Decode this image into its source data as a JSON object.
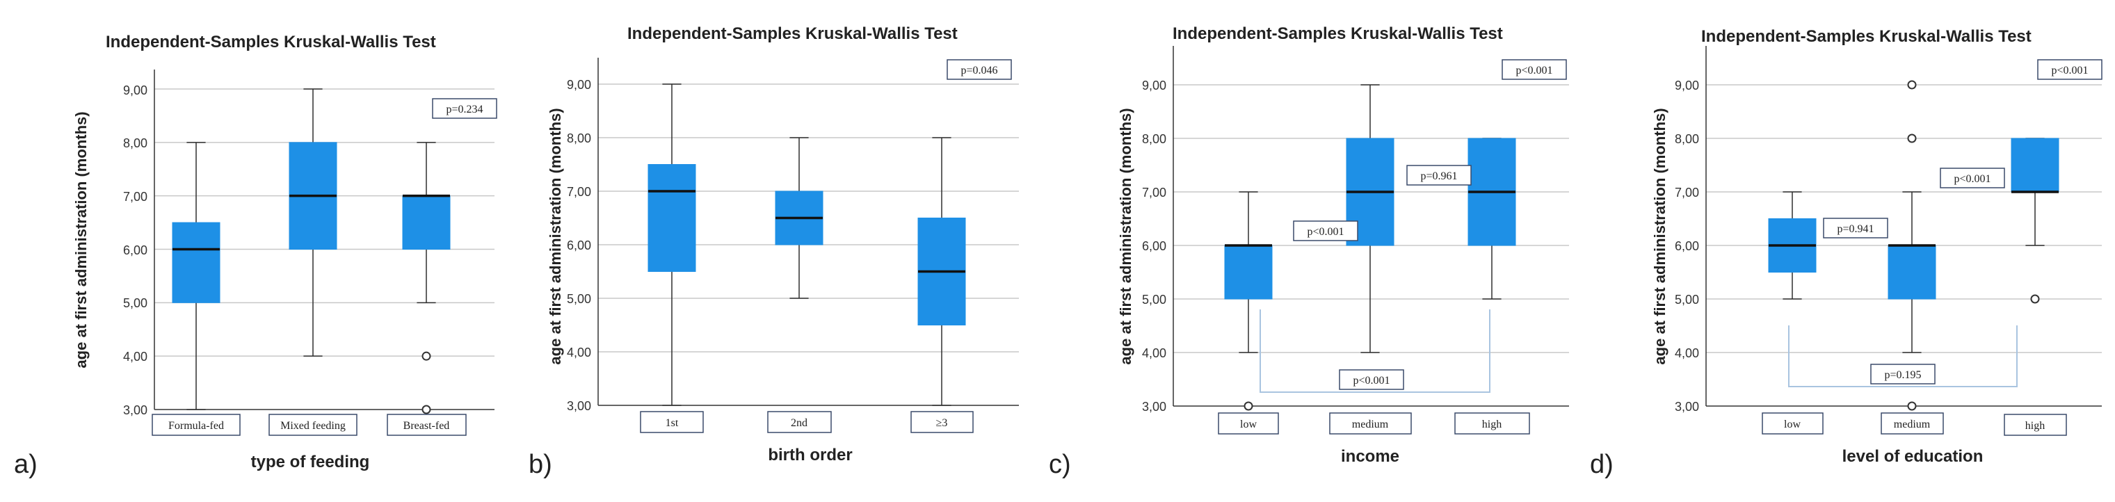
{
  "colors": {
    "box_fill": "#1e90e6",
    "box_stroke": "#2f2f2f",
    "grid": "#c8c8c8",
    "axis": "#333333",
    "bracket": "#a9c4e0",
    "label_box_stroke": "#3a4a6a"
  },
  "chart_data": [
    {
      "type": "boxplot",
      "panel_label": "a)",
      "title": "Independent-Samples Kruskal-Wallis Test",
      "ylabel": "age at first administration (months)",
      "xlabel": "type of feeding",
      "ylim": [
        3,
        9.5
      ],
      "yticks": [
        "3,00",
        "4,00",
        "5,00",
        "6,00",
        "7,00",
        "8,00",
        "9,00"
      ],
      "categories": [
        "Formula-fed",
        "Mixed feeding",
        "Breast-fed"
      ],
      "boxes": [
        {
          "min": 3,
          "q1": 5,
          "median": 6,
          "q3": 6.5,
          "max": 8,
          "outliers": []
        },
        {
          "min": 4,
          "q1": 6,
          "median": 7,
          "q3": 8,
          "max": 9,
          "outliers": []
        },
        {
          "min": 5,
          "q1": 6,
          "median": 7,
          "q3": 7,
          "max": 8,
          "outliers": [
            4,
            3
          ]
        }
      ],
      "annotations": [
        "p=0.234"
      ],
      "brackets": []
    },
    {
      "type": "boxplot",
      "panel_label": "b)",
      "title": "Independent-Samples Kruskal-Wallis Test",
      "ylabel": "age at first administration (months)",
      "xlabel": "birth order",
      "ylim": [
        3,
        9.5
      ],
      "yticks": [
        "3,00",
        "4,00",
        "5,00",
        "6,00",
        "7,00",
        "8,00",
        "9,00"
      ],
      "categories": [
        "1st",
        "2nd",
        "≥3"
      ],
      "boxes": [
        {
          "min": 3,
          "q1": 5.5,
          "median": 7,
          "q3": 7.5,
          "max": 9,
          "outliers": []
        },
        {
          "min": 5,
          "q1": 6,
          "median": 6.5,
          "q3": 7,
          "max": 8,
          "outliers": []
        },
        {
          "min": 3,
          "q1": 4.5,
          "median": 5.5,
          "q3": 6.5,
          "max": 8,
          "outliers": []
        }
      ],
      "annotations": [
        "p=0.046"
      ],
      "brackets": []
    },
    {
      "type": "boxplot",
      "panel_label": "c)",
      "title": "Independent-Samples Kruskal-Wallis Test",
      "ylabel": "age at first administration (months)",
      "xlabel": "income",
      "ylim": [
        3,
        9.7
      ],
      "yticks": [
        "3,00",
        "4,00",
        "5,00",
        "6,00",
        "7,00",
        "8,00",
        "9,00"
      ],
      "categories": [
        "low",
        "medium",
        "high"
      ],
      "boxes": [
        {
          "min": 4,
          "q1": 5,
          "median": 6,
          "q3": 6,
          "max": 7,
          "outliers": [
            3
          ]
        },
        {
          "min": 4,
          "q1": 6,
          "median": 7,
          "q3": 8,
          "max": 9,
          "outliers": []
        },
        {
          "min": 5,
          "q1": 6,
          "median": 7,
          "q3": 8,
          "max": 8,
          "outliers": []
        }
      ],
      "annotations": [
        "p<0.001",
        "p<0.001",
        "p=0.961",
        "p<0.001"
      ],
      "brackets": [
        {
          "from": 0,
          "to": 2,
          "label": "p<0.001"
        }
      ]
    },
    {
      "type": "boxplot",
      "panel_label": "d)",
      "title": "Independent-Samples Kruskal-Wallis Test",
      "ylabel": "age at first administration (months)",
      "xlabel": "level of education",
      "ylim": [
        3,
        9.7
      ],
      "yticks": [
        "3,00",
        "4,00",
        "5,00",
        "6,00",
        "7,00",
        "8,00",
        "9,00"
      ],
      "categories": [
        "low",
        "medium",
        "high"
      ],
      "boxes": [
        {
          "min": 5,
          "q1": 5.5,
          "median": 6,
          "q3": 6.5,
          "max": 7,
          "outliers": []
        },
        {
          "min": 4,
          "q1": 5,
          "median": 6,
          "q3": 6,
          "max": 7,
          "outliers": [
            9,
            8,
            3
          ]
        },
        {
          "min": 6,
          "q1": 7,
          "median": 7,
          "q3": 8,
          "max": 8,
          "outliers": [
            5
          ]
        }
      ],
      "annotations": [
        "p<0.001",
        "p=0.941",
        "p<0.001",
        "p=0.195"
      ],
      "brackets": [
        {
          "from": 0,
          "to": 2,
          "label": "p=0.195"
        }
      ]
    }
  ]
}
